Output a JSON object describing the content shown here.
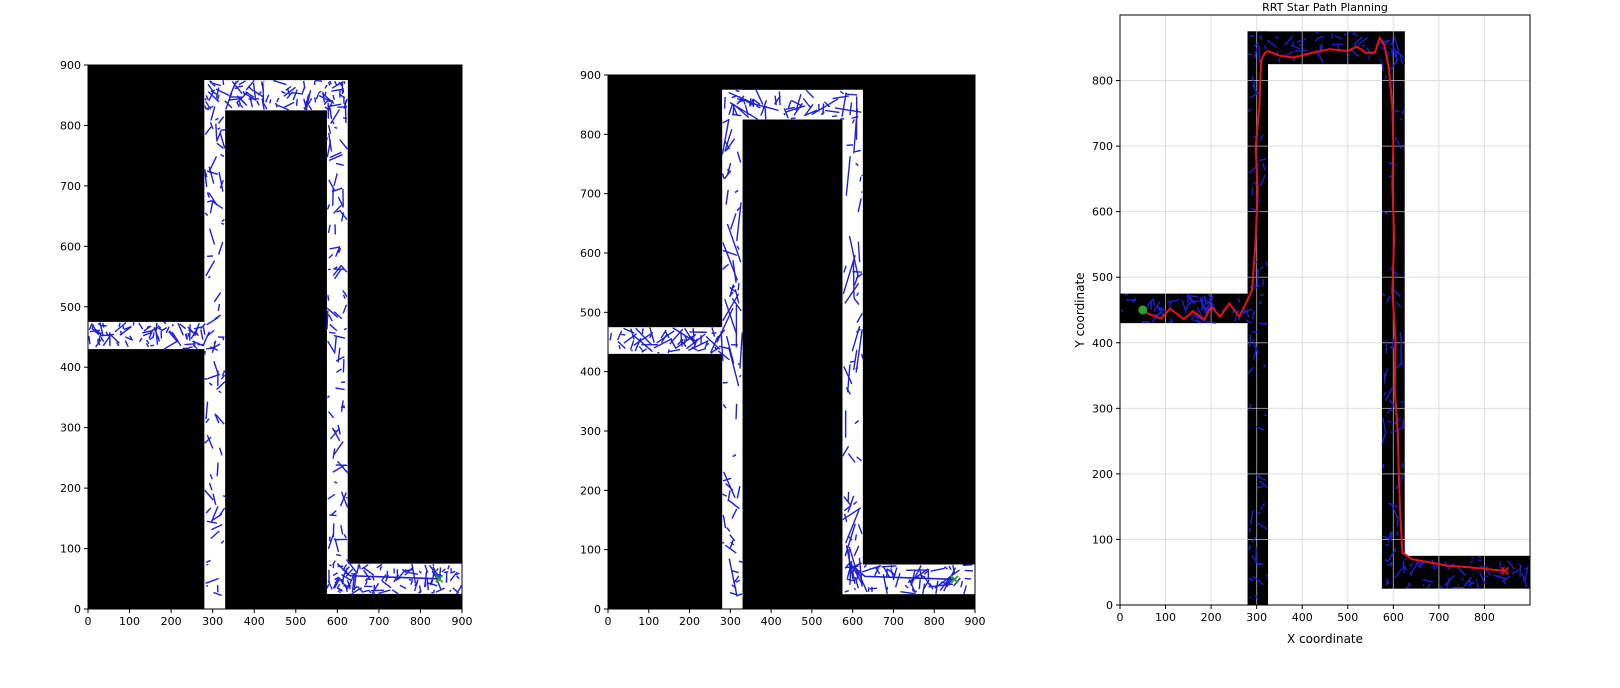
{
  "colors": {
    "obstacle": "#000000",
    "free_space": "#ffffff",
    "tree_edge": "#1f1fd6",
    "path": "#e8121c",
    "goal_marker_green": "#2ca02c",
    "goal_marker_red": "#e8121c",
    "start_marker": "#2ca02c",
    "grid": "#d0d0d0"
  },
  "chart_data": [
    {
      "type": "scatter",
      "title": "",
      "xlabel": "",
      "ylabel": "",
      "xlim": [
        0,
        900
      ],
      "ylim": [
        0,
        900
      ],
      "grid": false,
      "xticks": [
        "0",
        "100",
        "200",
        "300",
        "400",
        "500",
        "600",
        "700",
        "800",
        "900"
      ],
      "yticks": [
        "0",
        "100",
        "200",
        "300",
        "400",
        "500",
        "600",
        "700",
        "800",
        "900"
      ],
      "background": "obstacle",
      "free_regions": [
        {
          "x": [
            0,
            280
          ],
          "y": [
            430,
            475
          ]
        },
        {
          "x": [
            280,
            330
          ],
          "y": [
            0,
            875
          ]
        },
        {
          "x": [
            280,
            625
          ],
          "y": [
            825,
            875
          ]
        },
        {
          "x": [
            575,
            625
          ],
          "y": [
            25,
            875
          ]
        },
        {
          "x": [
            575,
            900
          ],
          "y": [
            25,
            75
          ]
        }
      ],
      "tree_style": "dense-short",
      "goal": {
        "x": 845,
        "y": 50,
        "marker": "x",
        "color": "goal_marker_green"
      }
    },
    {
      "type": "scatter",
      "title": "",
      "xlabel": "",
      "ylabel": "",
      "xlim": [
        0,
        900
      ],
      "ylim": [
        0,
        900
      ],
      "grid": false,
      "xticks": [
        "0",
        "100",
        "200",
        "300",
        "400",
        "500",
        "600",
        "700",
        "800",
        "900"
      ],
      "yticks": [
        "0",
        "100",
        "200",
        "300",
        "400",
        "500",
        "600",
        "700",
        "800",
        "900"
      ],
      "background": "obstacle",
      "free_regions": [
        {
          "x": [
            0,
            280
          ],
          "y": [
            430,
            475
          ]
        },
        {
          "x": [
            280,
            330
          ],
          "y": [
            0,
            875
          ]
        },
        {
          "x": [
            280,
            625
          ],
          "y": [
            825,
            875
          ]
        },
        {
          "x": [
            575,
            625
          ],
          "y": [
            25,
            875
          ]
        },
        {
          "x": [
            575,
            900
          ],
          "y": [
            25,
            75
          ]
        }
      ],
      "tree_style": "sparse-long",
      "goal": {
        "x": 850,
        "y": 50,
        "marker": "x",
        "color": "goal_marker_green"
      }
    },
    {
      "type": "line",
      "title": "RRT Star Path Planning",
      "xlabel": "X coordinate",
      "ylabel": "Y coordinate",
      "xlim": [
        0,
        900
      ],
      "ylim": [
        0,
        900
      ],
      "grid": true,
      "xticks": [
        "0",
        "100",
        "200",
        "300",
        "400",
        "500",
        "600",
        "700",
        "800"
      ],
      "yticks": [
        "0",
        "100",
        "200",
        "300",
        "400",
        "500",
        "600",
        "700",
        "800"
      ],
      "background": "free_space",
      "corridor_regions": [
        {
          "x": [
            0,
            280
          ],
          "y": [
            430,
            475
          ]
        },
        {
          "x": [
            280,
            325
          ],
          "y": [
            0,
            875
          ]
        },
        {
          "x": [
            280,
            625
          ],
          "y": [
            825,
            875
          ]
        },
        {
          "x": [
            575,
            625
          ],
          "y": [
            25,
            875
          ]
        },
        {
          "x": [
            575,
            900
          ],
          "y": [
            25,
            75
          ]
        }
      ],
      "start": {
        "x": 50,
        "y": 450,
        "marker": "o",
        "color": "start_marker"
      },
      "goal": {
        "x": 845,
        "y": 52,
        "marker": "x",
        "color": "goal_marker_red"
      },
      "path": {
        "x": [
          50,
          60,
          90,
          110,
          140,
          160,
          185,
          200,
          220,
          240,
          262,
          275,
          290,
          298,
          302,
          298,
          306,
          308,
          310,
          313,
          318,
          325,
          350,
          380,
          420,
          460,
          500,
          520,
          540,
          560,
          570,
          580,
          590,
          598,
          600,
          598,
          602,
          598,
          605,
          603,
          610,
          612,
          615,
          620,
          640,
          680,
          720,
          760,
          800,
          845
        ],
        "y": [
          450,
          445,
          437,
          452,
          436,
          448,
          435,
          455,
          440,
          460,
          440,
          458,
          480,
          560,
          630,
          700,
          760,
          800,
          830,
          836,
          842,
          845,
          838,
          835,
          842,
          848,
          845,
          852,
          842,
          843,
          865,
          855,
          820,
          760,
          700,
          640,
          560,
          480,
          400,
          330,
          260,
          200,
          140,
          80,
          70,
          65,
          60,
          58,
          55,
          52
        ]
      }
    }
  ]
}
